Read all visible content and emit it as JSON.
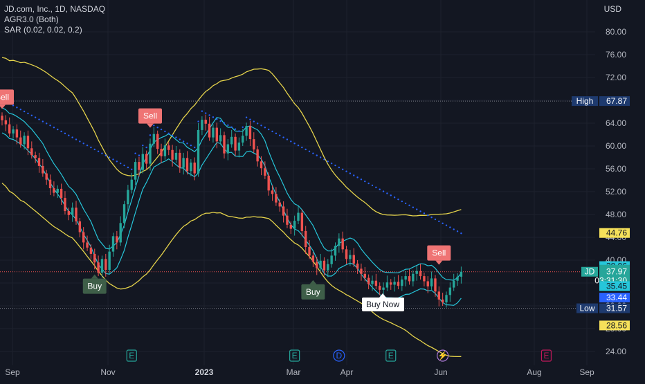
{
  "legend": {
    "symbol": "JD.com, Inc., 1D, NASDAQ",
    "indicator1": "AGR3.0 (Both)",
    "indicator2": "SAR (0.02, 0.02, 0.2)"
  },
  "currency": "USD",
  "colors": {
    "background": "#131722",
    "up": "#26a69a",
    "down": "#ef5350",
    "band_outer": "#e5d34b",
    "band_inner": "#26c6da",
    "sar": "#2962ff",
    "sell": "#ef7474",
    "buy": "#3e5e48",
    "high_low_line": "#787b86",
    "current_line": "#ef5350"
  },
  "chart_data": {
    "type": "candlestick",
    "x_axis_ticks": [
      "Sep",
      "Nov",
      "2023",
      "Mar",
      "Apr",
      "Jun",
      "Aug",
      "Sep"
    ],
    "y_axis_ticks": [
      "24.00",
      "28.00",
      "32.00",
      "36.00",
      "40.00",
      "44.00",
      "48.00",
      "52.00",
      "56.00",
      "60.00",
      "64.00",
      "68.00",
      "72.00",
      "76.00",
      "80.00"
    ],
    "ylim": [
      23,
      84
    ],
    "price_labels": [
      {
        "label": "High",
        "value": "67.87",
        "kind": "high"
      },
      {
        "label": "",
        "value": "44.76",
        "kind": "band_upper"
      },
      {
        "label": "",
        "value": "38.96",
        "kind": "inner_upper"
      },
      {
        "label": "JD",
        "value": "37.97",
        "kind": "last",
        "countdown": "03:31:30"
      },
      {
        "label": "",
        "value": "35.45",
        "kind": "inner_mid"
      },
      {
        "label": "",
        "value": "33.44",
        "kind": "sar"
      },
      {
        "label": "Low",
        "value": "31.57",
        "kind": "low"
      },
      {
        "label": "",
        "value": "28.56",
        "kind": "band_lower"
      }
    ],
    "signals": [
      {
        "type": "Sell",
        "x_index": 0,
        "price": 66.5
      },
      {
        "type": "Buy",
        "x_index": 25,
        "price": 37.5
      },
      {
        "type": "Sell",
        "x_index": 40,
        "price": 63.2
      },
      {
        "type": "Buy",
        "x_index": 84,
        "price": 36.5
      },
      {
        "type": "Sell",
        "x_index": 118,
        "price": 39.2
      }
    ],
    "buy_now_label": "Buy Now",
    "event_markers": [
      {
        "icon": "E",
        "x_index": 35
      },
      {
        "icon": "E",
        "x_index": 79
      },
      {
        "icon": "D",
        "x_index": 91
      },
      {
        "icon": "E",
        "x_index": 105
      },
      {
        "icon": "⚡",
        "x_index": 119
      },
      {
        "icon": "E",
        "x_index": 147
      }
    ],
    "close_series": [
      64.5,
      63.8,
      62.2,
      62.9,
      61.5,
      60.3,
      61.8,
      59.6,
      58.4,
      57.9,
      56.5,
      55.2,
      54.1,
      52.6,
      51.8,
      52.5,
      50.9,
      48.6,
      47.9,
      49.2,
      46.8,
      44.9,
      43.1,
      42.2,
      41.1,
      39.6,
      37.8,
      40.2,
      38.3,
      41.5,
      44.2,
      43.1,
      46.5,
      49.8,
      52.3,
      54.1,
      57.2,
      55.8,
      58.6,
      56.9,
      60.4,
      62.1,
      59.5,
      58.2,
      60.1,
      59.3,
      57.6,
      58.8,
      56.2,
      57.9,
      55.6,
      57.1,
      55.2,
      62.8,
      64.6,
      63.9,
      61.5,
      63.2,
      60.8,
      61.9,
      58.7,
      60.3,
      61.6,
      59.2,
      60.6,
      61.8,
      63.5,
      61.2,
      59.4,
      57.3,
      56.1,
      54.8,
      52.2,
      51.6,
      50.1,
      49.4,
      47.8,
      46.2,
      45.5,
      46.9,
      48.3,
      45.1,
      42.3,
      40.8,
      39.7,
      38.6,
      39.9,
      38.2,
      39.3,
      40.8,
      42.5,
      43.8,
      41.9,
      40.2,
      40.9,
      39.4,
      38.5,
      37.6,
      36.9,
      35.8,
      36.4,
      35.5,
      34.8,
      35.2,
      36.1,
      35.7,
      36.2,
      35.5,
      36.6,
      37.2,
      36.3,
      37.6,
      38.1,
      37.2,
      36.3,
      35.4,
      36.8,
      34.5,
      33.1,
      32.6,
      33.9,
      35.2,
      36.4,
      37.1,
      37.97
    ],
    "high": 67.87,
    "low": 31.57,
    "last": 37.97
  }
}
